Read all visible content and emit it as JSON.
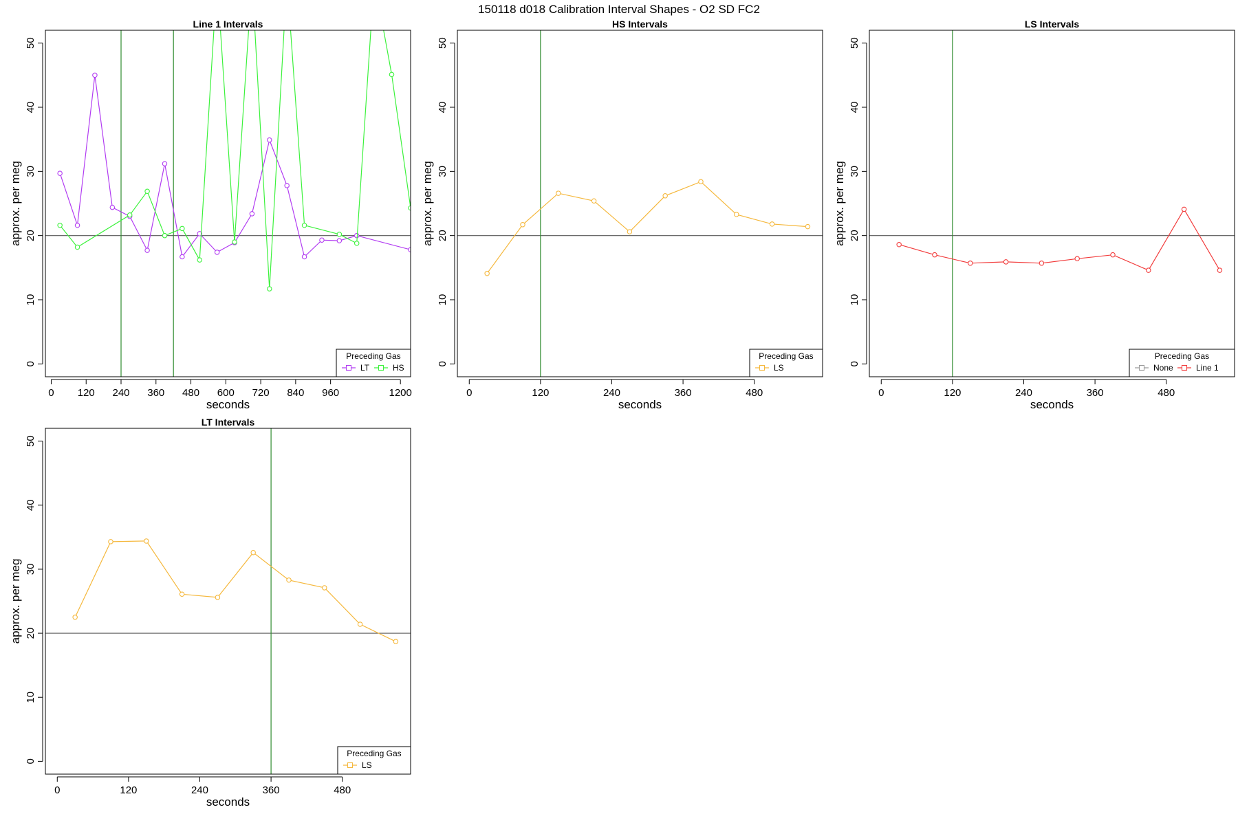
{
  "figure_title": "150118   d018   Calibration Interval Shapes - O2 SD FC2",
  "chart_data": [
    {
      "type": "line",
      "title": "Line 1 Intervals",
      "xlabel": "seconds",
      "ylabel": "approx. per meg",
      "xlim": [
        -20,
        1235
      ],
      "ylim": [
        -2,
        52
      ],
      "xticks": [
        0,
        120,
        240,
        360,
        480,
        600,
        720,
        840,
        960,
        1200
      ],
      "yticks": [
        0,
        10,
        20,
        30,
        40,
        50
      ],
      "hline": 20,
      "vlines": [
        240,
        420
      ],
      "legend": {
        "title": "Preceding Gas",
        "position": "bottom-right"
      },
      "series": [
        {
          "name": "LT",
          "color": "#B23CF2",
          "x": [
            30,
            90,
            150,
            210,
            270,
            330,
            390,
            450,
            510,
            570,
            630,
            690,
            750,
            810,
            870,
            930,
            990,
            1050,
            1235
          ],
          "y": [
            29.7,
            21.6,
            45.0,
            24.4,
            23.0,
            17.7,
            31.2,
            16.7,
            20.3,
            17.4,
            18.9,
            23.4,
            34.9,
            27.8,
            16.7,
            19.3,
            19.2,
            20.0,
            17.8
          ]
        },
        {
          "name": "HS",
          "color": "#3CF23C",
          "x": [
            30,
            90,
            270,
            330,
            390,
            450,
            510,
            570,
            630,
            690,
            750,
            810,
            870,
            990,
            1050,
            1110,
            1170,
            1235
          ],
          "y": [
            21.6,
            18.2,
            23.2,
            26.9,
            20.0,
            21.1,
            16.2,
            60,
            19.0,
            60,
            11.7,
            60,
            21.6,
            20.2,
            18.8,
            60,
            45.1,
            24.3
          ]
        }
      ]
    },
    {
      "type": "line",
      "title": "HS Intervals",
      "xlabel": "seconds",
      "ylabel": "approx. per meg",
      "xlim": [
        -20,
        595
      ],
      "ylim": [
        -2,
        52
      ],
      "xticks": [
        0,
        120,
        240,
        360,
        480
      ],
      "yticks": [
        0,
        10,
        20,
        30,
        40,
        50
      ],
      "hline": 20,
      "vlines": [
        120
      ],
      "legend": {
        "title": "Preceding Gas",
        "position": "bottom-right"
      },
      "series": [
        {
          "name": "LS",
          "color": "#F5B83D",
          "x": [
            30,
            90,
            150,
            210,
            270,
            330,
            390,
            450,
            510,
            570
          ],
          "y": [
            14.1,
            21.7,
            26.6,
            25.4,
            20.6,
            26.2,
            28.4,
            23.3,
            21.8,
            21.4
          ]
        }
      ]
    },
    {
      "type": "line",
      "title": "LS Intervals",
      "xlabel": "seconds",
      "ylabel": "approx. per meg",
      "xlim": [
        -20,
        595
      ],
      "ylim": [
        -2,
        52
      ],
      "xticks": [
        0,
        120,
        240,
        360,
        480
      ],
      "yticks": [
        0,
        10,
        20,
        30,
        40,
        50
      ],
      "hline": 20,
      "vlines": [
        120
      ],
      "legend": {
        "title": "Preceding Gas",
        "position": "bottom-right"
      },
      "series": [
        {
          "name": "None",
          "color": "#9A9A9A",
          "x": [],
          "y": []
        },
        {
          "name": "Line 1",
          "color": "#F23C3C",
          "x": [
            30,
            90,
            150,
            210,
            270,
            330,
            390,
            450,
            510,
            570
          ],
          "y": [
            18.6,
            17.0,
            15.7,
            15.9,
            15.7,
            16.4,
            17.0,
            14.6,
            24.1,
            14.6
          ]
        }
      ]
    },
    {
      "type": "line",
      "title": "LT Intervals",
      "xlabel": "seconds",
      "ylabel": "approx. per meg",
      "xlim": [
        -20,
        595
      ],
      "ylim": [
        -2,
        52
      ],
      "xticks": [
        0,
        120,
        240,
        360,
        480
      ],
      "yticks": [
        0,
        10,
        20,
        30,
        40,
        50
      ],
      "hline": 20,
      "vlines": [
        360
      ],
      "legend": {
        "title": "Preceding Gas",
        "position": "bottom-right"
      },
      "series": [
        {
          "name": "LS",
          "color": "#F5B83D",
          "x": [
            30,
            90,
            150,
            210,
            270,
            330,
            390,
            450,
            510,
            570
          ],
          "y": [
            22.5,
            34.3,
            34.4,
            26.1,
            25.6,
            32.6,
            28.3,
            27.1,
            21.4,
            18.7
          ]
        }
      ]
    }
  ]
}
